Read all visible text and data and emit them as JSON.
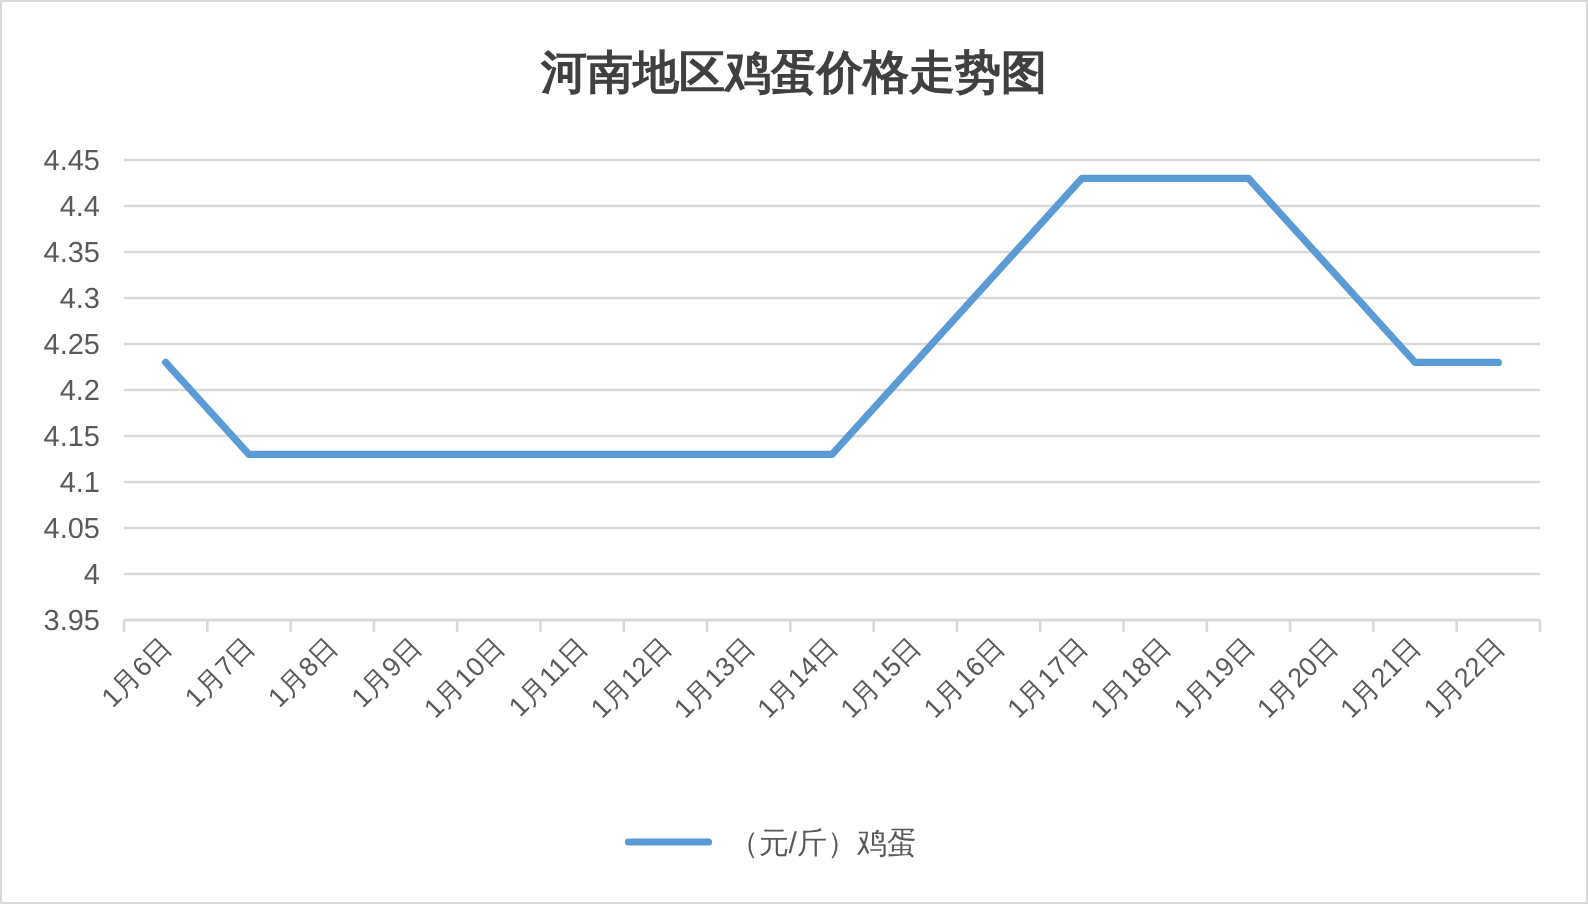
{
  "chart_data": {
    "type": "line",
    "title": "河南地区鸡蛋价格走势图",
    "categories": [
      "1月6日",
      "1月7日",
      "1月8日",
      "1月9日",
      "1月10日",
      "1月11日",
      "1月12日",
      "1月13日",
      "1月14日",
      "1月15日",
      "1月16日",
      "1月17日",
      "1月18日",
      "1月19日",
      "1月20日",
      "1月21日",
      "1月22日"
    ],
    "series": [
      {
        "name": "（元/斤）鸡蛋",
        "color": "#5b9bd5",
        "values": [
          4.23,
          4.13,
          4.13,
          4.13,
          4.13,
          4.13,
          4.13,
          4.13,
          4.13,
          4.23,
          4.33,
          4.43,
          4.43,
          4.43,
          4.33,
          4.23,
          4.23
        ]
      }
    ],
    "ylim": [
      3.95,
      4.45
    ],
    "yticks": [
      3.95,
      4,
      4.05,
      4.1,
      4.15,
      4.2,
      4.25,
      4.3,
      4.35,
      4.4,
      4.45
    ],
    "grid": "y",
    "legend": "bottom"
  }
}
